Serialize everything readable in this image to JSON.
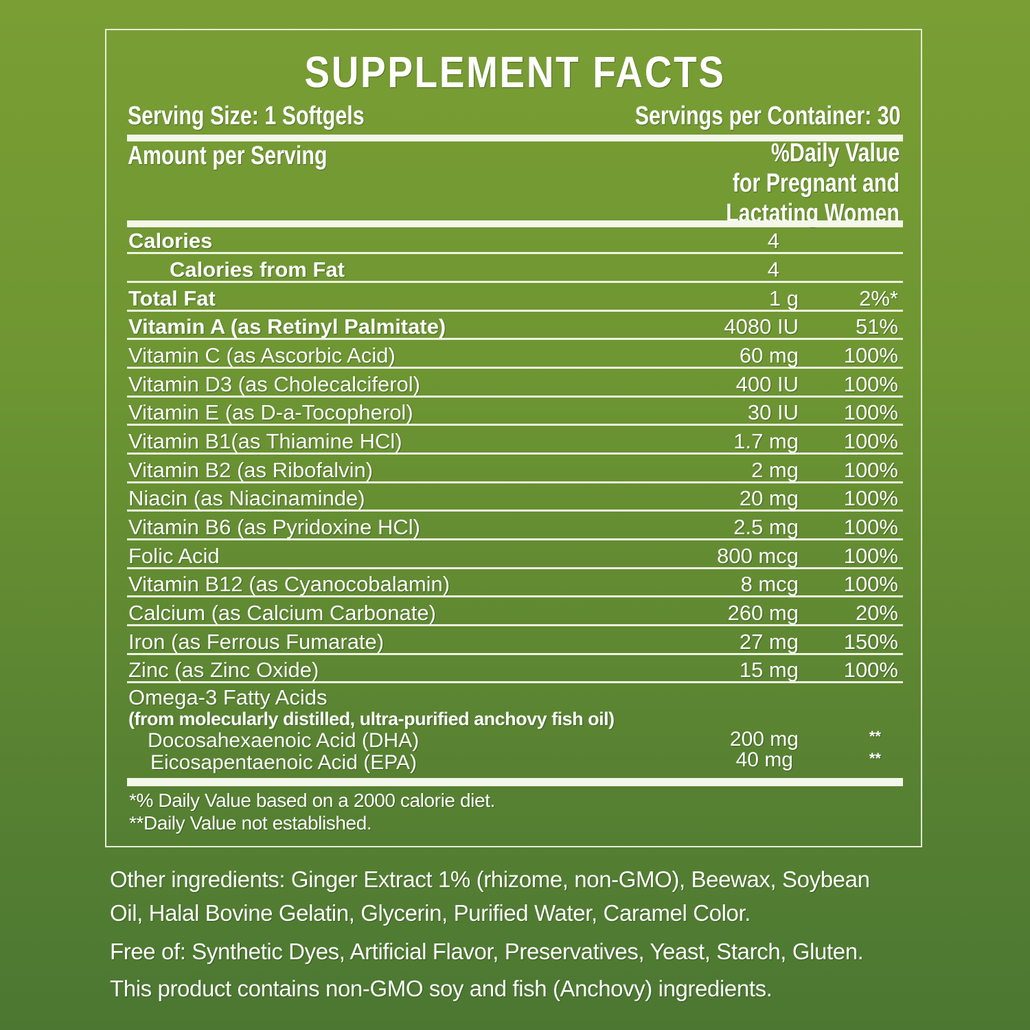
{
  "panel": {
    "title": "SUPPLEMENT FACTS",
    "serving_size": "Serving Size: 1 Softgels",
    "servings_per_container": "Servings per Container: 30",
    "amount_per_serving": "Amount per Serving",
    "dv_header": [
      "%Daily Value",
      "for Pregnant and",
      "Lactating Women"
    ]
  },
  "rows": [
    {
      "name": "Calories",
      "amount": "4",
      "dv": "",
      "bold": true,
      "indent": false
    },
    {
      "name": "Calories from Fat",
      "amount": "4",
      "dv": "",
      "bold": true,
      "indent": true
    },
    {
      "name": "Total Fat",
      "amount": "1 g",
      "dv": "2%*",
      "bold": true,
      "indent": false
    },
    {
      "name": "Vitamin A (as Retinyl Palmitate)",
      "amount": "4080 IU",
      "dv": "51%",
      "bold": true,
      "indent": false
    },
    {
      "name": "Vitamin C (as Ascorbic Acid)",
      "amount": "60 mg",
      "dv": "100%",
      "bold": false,
      "indent": false
    },
    {
      "name": "Vitamin D3 (as Cholecalciferol)",
      "amount": "400 IU",
      "dv": "100%",
      "bold": false,
      "indent": false
    },
    {
      "name": "Vitamin E (as D-a-Tocopherol)",
      "amount": "30 IU",
      "dv": "100%",
      "bold": false,
      "indent": false
    },
    {
      "name": "Vitamin B1(as Thiamine HCl)",
      "amount": "1.7 mg",
      "dv": "100%",
      "bold": false,
      "indent": false
    },
    {
      "name": "Vitamin B2 (as Ribofalvin)",
      "amount": "2 mg",
      "dv": "100%",
      "bold": false,
      "indent": false
    },
    {
      "name": "Niacin (as Niacinaminde)",
      "amount": "20 mg",
      "dv": "100%",
      "bold": false,
      "indent": false
    },
    {
      "name": "Vitamin B6 (as Pyridoxine HCl)",
      "amount": "2.5 mg",
      "dv": "100%",
      "bold": false,
      "indent": false
    },
    {
      "name": "Folic Acid",
      "amount": "800 mcg",
      "dv": "100%",
      "bold": false,
      "indent": false
    },
    {
      "name": "Vitamin B12 (as Cyanocobalamin)",
      "amount": "8 mcg",
      "dv": "100%",
      "bold": false,
      "indent": false
    },
    {
      "name": "Calcium (as Calcium Carbonate)",
      "amount": "260 mg",
      "dv": "20%",
      "bold": false,
      "indent": false
    },
    {
      "name": "Iron (as Ferrous Fumarate)",
      "amount": "27 mg",
      "dv": "150%",
      "bold": false,
      "indent": false
    },
    {
      "name": "Zinc (as Zinc Oxide)",
      "amount": "15 mg",
      "dv": "100%",
      "bold": false,
      "indent": false
    }
  ],
  "omega": {
    "title": "Omega-3 Fatty Acids",
    "source": "(from molecularly distilled, ultra-purified anchovy fish oil)",
    "items": [
      {
        "name": "Docosahexaenoic Acid (DHA)",
        "amount": "200 mg",
        "dv": "**"
      },
      {
        "name": "Eicosapentaenoic Acid (EPA)",
        "amount": "40 mg",
        "dv": "**"
      }
    ]
  },
  "footnotes": [
    "*% Daily Value based on a 2000 calorie diet.",
    "**Daily Value not established."
  ],
  "other": {
    "ingredients_line1": "Other ingredients: Ginger Extract 1% (rhizome, non-GMO), Beewax, Soybean",
    "ingredients_line2": "Oil, Halal Bovine Gelatin, Glycerin, Purified Water, Caramel Color.",
    "free_of": "Free of: Synthetic Dyes, Artificial Flavor, Preservatives, Yeast, Starch, Gluten.",
    "contains": "This product contains non-GMO soy and fish (Anchovy) ingredients."
  },
  "colors": {
    "background_top": "#7a9e34",
    "background_bottom": "#4b7732",
    "text": "#ffffff",
    "rule": "#f3f8ea"
  }
}
